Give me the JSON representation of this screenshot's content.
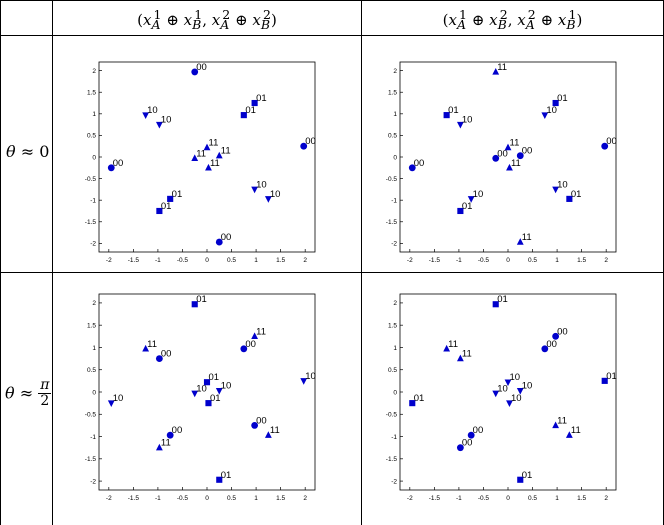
{
  "headers": {
    "col1": {
      "open": "(",
      "a1": "x",
      "a1_sub": "A",
      "a1_sup": "1",
      "op1": "⊕",
      "b1": "x",
      "b1_sub": "B",
      "b1_sup": "1",
      "comma": ",",
      "a2": "x",
      "a2_sub": "A",
      "a2_sup": "2",
      "op2": "⊕",
      "b2": "x",
      "b2_sub": "B",
      "b2_sup": "2",
      "close": ")"
    },
    "col2": {
      "open": "(",
      "a1": "x",
      "a1_sub": "A",
      "a1_sup": "1",
      "op1": "⊕",
      "b1": "x",
      "b1_sub": "B",
      "b1_sup": "2",
      "comma": ",",
      "a2": "x",
      "a2_sub": "A",
      "a2_sup": "2",
      "op2": "⊕",
      "b2": "x",
      "b2_sub": "B",
      "b2_sup": "1",
      "close": ")"
    }
  },
  "rows": {
    "row1": {
      "theta": "θ",
      "approx": "≈",
      "value": "0"
    },
    "row2": {
      "theta": "θ",
      "approx": "≈",
      "num": "π",
      "den": "2"
    }
  },
  "colors": {
    "marker": "#0000cc",
    "frame": "#000000"
  },
  "chart_data": [
    {
      "type": "scatter",
      "xlim": [
        -2.2,
        2.2
      ],
      "ylim": [
        -2.2,
        2.2
      ],
      "xticks": [
        "-2",
        "-1.5",
        "-1",
        "-0.5",
        "0",
        "0.5",
        "1",
        "1.5",
        "2"
      ],
      "yticks": [
        "2",
        "1.5",
        "1",
        "0.5",
        "0",
        "-0.5",
        "-1",
        "-1.5",
        "-2"
      ],
      "grid": false,
      "points": [
        {
          "x": -0.25,
          "y": 1.97,
          "m": "circle",
          "label": "00"
        },
        {
          "x": 0.25,
          "y": -1.97,
          "m": "circle",
          "label": "00"
        },
        {
          "x": -1.95,
          "y": -0.25,
          "m": "circle",
          "label": "00"
        },
        {
          "x": 1.97,
          "y": 0.25,
          "m": "circle",
          "label": "00"
        },
        {
          "x": 0.75,
          "y": 0.97,
          "m": "square",
          "label": "01"
        },
        {
          "x": 0.97,
          "y": 1.25,
          "m": "square",
          "label": "01"
        },
        {
          "x": -0.75,
          "y": -0.97,
          "m": "square",
          "label": "01"
        },
        {
          "x": -0.97,
          "y": -1.25,
          "m": "square",
          "label": "01"
        },
        {
          "x": -1.25,
          "y": 0.97,
          "m": "tdown",
          "label": "10"
        },
        {
          "x": -0.97,
          "y": 0.75,
          "m": "tdown",
          "label": "10"
        },
        {
          "x": 0.97,
          "y": -0.75,
          "m": "tdown",
          "label": "10"
        },
        {
          "x": 1.25,
          "y": -0.97,
          "m": "tdown",
          "label": "10"
        },
        {
          "x": -0.25,
          "y": -0.03,
          "m": "tup",
          "label": "11"
        },
        {
          "x": 0.0,
          "y": 0.22,
          "m": "tup",
          "label": "11"
        },
        {
          "x": 0.03,
          "y": -0.25,
          "m": "tup",
          "label": "11"
        },
        {
          "x": 0.25,
          "y": 0.03,
          "m": "tup",
          "label": "11"
        }
      ]
    },
    {
      "type": "scatter",
      "xlim": [
        -2.2,
        2.2
      ],
      "ylim": [
        -2.2,
        2.2
      ],
      "xticks": [
        "-2",
        "-1.5",
        "-1",
        "-0.5",
        "0",
        "0.5",
        "1",
        "1.5",
        "2"
      ],
      "yticks": [
        "2",
        "1.5",
        "1",
        "0.5",
        "0",
        "-0.5",
        "-1",
        "-1.5",
        "-2"
      ],
      "grid": false,
      "points": [
        {
          "x": -0.25,
          "y": 1.97,
          "m": "tup",
          "label": "11"
        },
        {
          "x": 0.25,
          "y": -1.97,
          "m": "tup",
          "label": "11"
        },
        {
          "x": -1.95,
          "y": -0.25,
          "m": "circle",
          "label": "00"
        },
        {
          "x": 1.97,
          "y": 0.25,
          "m": "circle",
          "label": "00"
        },
        {
          "x": -1.25,
          "y": 0.97,
          "m": "square",
          "label": "01"
        },
        {
          "x": -0.97,
          "y": 0.75,
          "m": "tdown",
          "label": "10"
        },
        {
          "x": 0.75,
          "y": 0.97,
          "m": "tdown",
          "label": "10"
        },
        {
          "x": 0.97,
          "y": 1.25,
          "m": "square",
          "label": "01"
        },
        {
          "x": -0.75,
          "y": -0.97,
          "m": "tdown",
          "label": "10"
        },
        {
          "x": -0.97,
          "y": -1.25,
          "m": "square",
          "label": "01"
        },
        {
          "x": 0.97,
          "y": -0.75,
          "m": "tdown",
          "label": "10"
        },
        {
          "x": 1.25,
          "y": -0.97,
          "m": "square",
          "label": "01"
        },
        {
          "x": -0.25,
          "y": -0.03,
          "m": "circle",
          "label": "00"
        },
        {
          "x": 0.0,
          "y": 0.22,
          "m": "tup",
          "label": "11"
        },
        {
          "x": 0.03,
          "y": -0.25,
          "m": "tup",
          "label": "11"
        },
        {
          "x": 0.25,
          "y": 0.03,
          "m": "circle",
          "label": "00"
        }
      ]
    },
    {
      "type": "scatter",
      "xlim": [
        -2.2,
        2.2
      ],
      "ylim": [
        -2.2,
        2.2
      ],
      "xticks": [
        "-2",
        "-1.5",
        "-1",
        "-0.5",
        "0",
        "0.5",
        "1",
        "1.5",
        "2"
      ],
      "yticks": [
        "2",
        "1.5",
        "1",
        "0.5",
        "0",
        "-0.5",
        "-1",
        "-1.5",
        "-2"
      ],
      "grid": false,
      "points": [
        {
          "x": -0.25,
          "y": 1.97,
          "m": "square",
          "label": "01"
        },
        {
          "x": 0.25,
          "y": -1.97,
          "m": "square",
          "label": "01"
        },
        {
          "x": -1.95,
          "y": -0.25,
          "m": "tdown",
          "label": "10"
        },
        {
          "x": 1.97,
          "y": 0.25,
          "m": "tdown",
          "label": "10"
        },
        {
          "x": -1.25,
          "y": 0.97,
          "m": "tup",
          "label": "11"
        },
        {
          "x": -0.97,
          "y": 0.75,
          "m": "circle",
          "label": "00"
        },
        {
          "x": 0.75,
          "y": 0.97,
          "m": "circle",
          "label": "00"
        },
        {
          "x": 0.97,
          "y": 1.25,
          "m": "tup",
          "label": "11"
        },
        {
          "x": -0.75,
          "y": -0.97,
          "m": "circle",
          "label": "00"
        },
        {
          "x": -0.97,
          "y": -1.25,
          "m": "tup",
          "label": "11"
        },
        {
          "x": 0.97,
          "y": -0.75,
          "m": "circle",
          "label": "00"
        },
        {
          "x": 1.25,
          "y": -0.97,
          "m": "tup",
          "label": "11"
        },
        {
          "x": -0.25,
          "y": -0.03,
          "m": "tdown",
          "label": "10"
        },
        {
          "x": 0.0,
          "y": 0.22,
          "m": "square",
          "label": "01"
        },
        {
          "x": 0.03,
          "y": -0.25,
          "m": "square",
          "label": "01"
        },
        {
          "x": 0.25,
          "y": 0.03,
          "m": "tdown",
          "label": "10"
        }
      ]
    },
    {
      "type": "scatter",
      "xlim": [
        -2.2,
        2.2
      ],
      "ylim": [
        -2.2,
        2.2
      ],
      "xticks": [
        "-2",
        "-1.5",
        "-1",
        "-0.5",
        "0",
        "0.5",
        "1",
        "1.5",
        "2"
      ],
      "yticks": [
        "2",
        "1.5",
        "1",
        "0.5",
        "0",
        "-0.5",
        "-1",
        "-1.5",
        "-2"
      ],
      "grid": false,
      "points": [
        {
          "x": -0.25,
          "y": 1.97,
          "m": "square",
          "label": "01"
        },
        {
          "x": 0.25,
          "y": -1.97,
          "m": "square",
          "label": "01"
        },
        {
          "x": -1.95,
          "y": -0.25,
          "m": "square",
          "label": "01"
        },
        {
          "x": 1.97,
          "y": 0.25,
          "m": "square",
          "label": "01"
        },
        {
          "x": -1.25,
          "y": 0.97,
          "m": "tup",
          "label": "11"
        },
        {
          "x": -0.97,
          "y": 0.75,
          "m": "tup",
          "label": "11"
        },
        {
          "x": 0.75,
          "y": 0.97,
          "m": "circle",
          "label": "00"
        },
        {
          "x": 0.97,
          "y": 1.25,
          "m": "circle",
          "label": "00"
        },
        {
          "x": -0.75,
          "y": -0.97,
          "m": "circle",
          "label": "00"
        },
        {
          "x": -0.97,
          "y": -1.25,
          "m": "circle",
          "label": "00"
        },
        {
          "x": 0.97,
          "y": -0.75,
          "m": "tup",
          "label": "11"
        },
        {
          "x": 1.25,
          "y": -0.97,
          "m": "tup",
          "label": "11"
        },
        {
          "x": -0.25,
          "y": -0.03,
          "m": "tdown",
          "label": "10"
        },
        {
          "x": 0.0,
          "y": 0.22,
          "m": "tdown",
          "label": "10"
        },
        {
          "x": 0.03,
          "y": -0.25,
          "m": "tdown",
          "label": "10"
        },
        {
          "x": 0.25,
          "y": 0.03,
          "m": "tdown",
          "label": "10"
        }
      ]
    }
  ]
}
